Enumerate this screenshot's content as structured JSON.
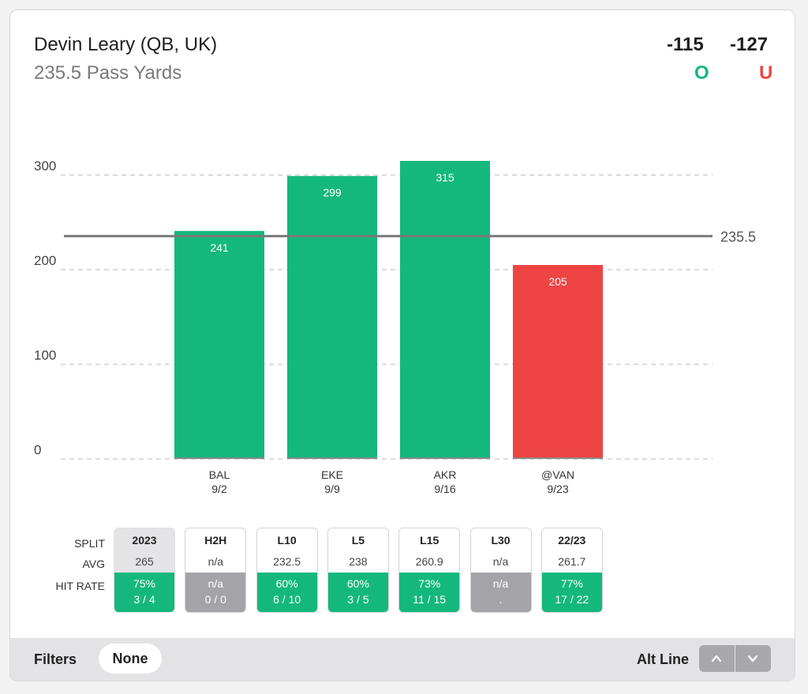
{
  "header": {
    "player": "Devin Leary (QB, UK)",
    "prop": "235.5 Pass Yards",
    "over_odds": "-115",
    "under_odds": "-127",
    "over_label": "O",
    "under_label": "U"
  },
  "colors": {
    "over": "#14b87d",
    "under": "#ef4444",
    "line": "#7a7a7a",
    "neutral": "#a3a3a8"
  },
  "chart_data": {
    "type": "bar",
    "categories": [
      "BAL",
      "EKE",
      "AKR",
      "@VAN"
    ],
    "dates": [
      "9/2",
      "9/9",
      "9/16",
      "9/23"
    ],
    "values": [
      241,
      299,
      315,
      205
    ],
    "yticks": [
      0,
      100,
      200,
      300
    ],
    "ylim": [
      0,
      300
    ],
    "line_value": 235.5,
    "line_label": "235.5",
    "bar_colors": [
      "over",
      "over",
      "over",
      "under"
    ],
    "grid": true
  },
  "splits": {
    "row_labels": [
      "SPLIT",
      "AVG",
      "HIT RATE"
    ],
    "items": [
      {
        "name": "2023",
        "avg": "265",
        "pct": "75%",
        "frac": "3 / 4",
        "status": "over",
        "active": true
      },
      {
        "name": "H2H",
        "avg": "n/a",
        "pct": "n/a",
        "frac": "0 / 0",
        "status": "neutral",
        "active": false
      },
      {
        "name": "L10",
        "avg": "232.5",
        "pct": "60%",
        "frac": "6 / 10",
        "status": "over",
        "active": false
      },
      {
        "name": "L5",
        "avg": "238",
        "pct": "60%",
        "frac": "3 / 5",
        "status": "over",
        "active": false
      },
      {
        "name": "L15",
        "avg": "260.9",
        "pct": "73%",
        "frac": "11 / 15",
        "status": "over",
        "active": false
      },
      {
        "name": "L30",
        "avg": "n/a",
        "pct": "n/a",
        "frac": ".",
        "status": "neutral",
        "active": false
      },
      {
        "name": "22/23",
        "avg": "261.7",
        "pct": "77%",
        "frac": "17 / 22",
        "status": "over",
        "active": false
      }
    ]
  },
  "footer": {
    "filters_label": "Filters",
    "filter_value": "None",
    "alt_line_label": "Alt Line",
    "up_icon": "chevron-up-icon",
    "down_icon": "chevron-down-icon"
  }
}
